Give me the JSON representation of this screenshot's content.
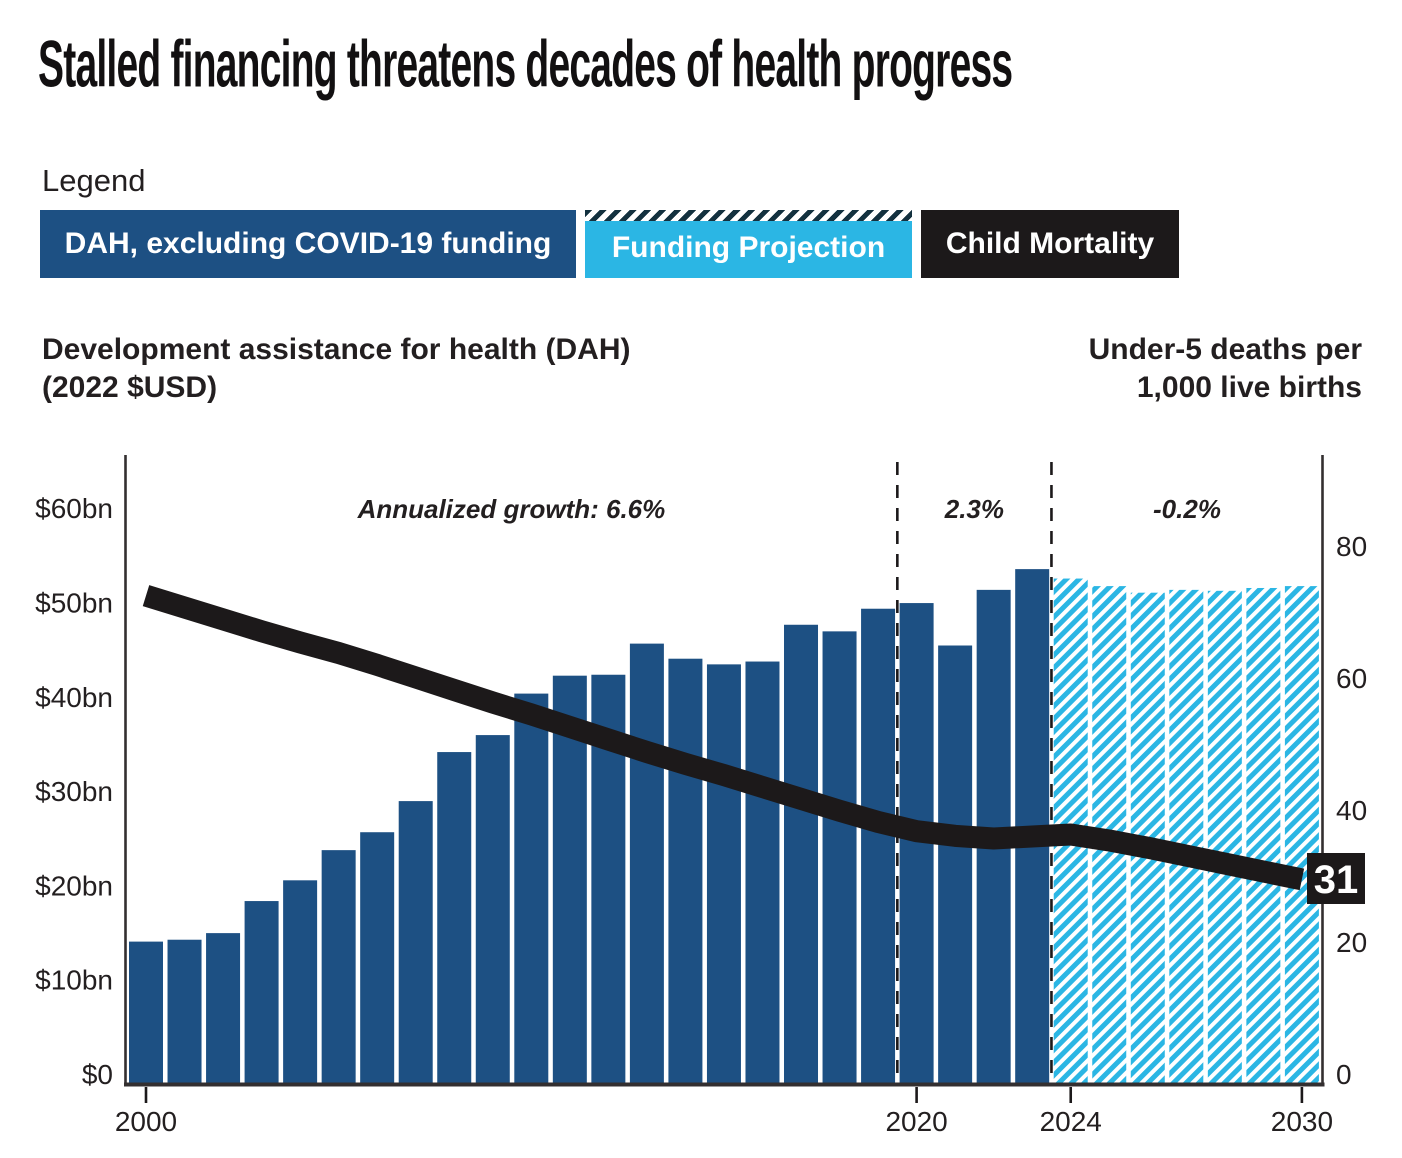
{
  "title": "Stalled financing threatens decades of health progress",
  "legend": {
    "label": "Legend",
    "items": [
      {
        "label": "DAH, excluding COVID-19 funding",
        "color": "#1d5083",
        "style": "solid"
      },
      {
        "label": "Funding Projection",
        "color": "#2bb6e4",
        "style": "hatched-top"
      },
      {
        "label": "Child Mortality",
        "color": "#1c191a",
        "style": "solid"
      }
    ]
  },
  "axis_headers": {
    "left_line1": "Development assistance for health (DAH)",
    "left_line2": "(2022 $USD)",
    "right_line1": "Under-5 deaths per",
    "right_line2": "1,000 live births"
  },
  "chart_data": {
    "type": "combo",
    "x": [
      2000,
      2001,
      2002,
      2003,
      2004,
      2005,
      2006,
      2007,
      2008,
      2009,
      2010,
      2011,
      2012,
      2013,
      2014,
      2015,
      2016,
      2017,
      2018,
      2019,
      2020,
      2021,
      2022,
      2023,
      2024,
      2025,
      2026,
      2027,
      2028,
      2029,
      2030
    ],
    "bar_series": {
      "name": "DAH, excluding COVID-19 funding",
      "unit": "billion 2022 USD",
      "color": "#1d5083",
      "projection_name": "Funding Projection",
      "projection_color": "#2bb6e4",
      "projection_start": 2024,
      "values": [
        15.1,
        15.3,
        16.0,
        19.4,
        21.6,
        24.8,
        26.7,
        30.0,
        35.2,
        37.0,
        41.4,
        43.3,
        43.4,
        46.7,
        45.1,
        44.5,
        44.8,
        48.7,
        48.0,
        50.4,
        51.0,
        46.5,
        52.4,
        54.6,
        53.6,
        52.8,
        52.1,
        52.4,
        52.3,
        52.6,
        52.8
      ]
    },
    "line_series": {
      "name": "Child Mortality",
      "unit": "under-5 deaths per 1,000 live births",
      "color": "#1c191a",
      "values": [
        74.0,
        72.2,
        70.4,
        68.6,
        66.9,
        65.3,
        63.5,
        61.6,
        59.7,
        57.8,
        56.0,
        54.1,
        52.2,
        50.3,
        48.5,
        46.8,
        45.0,
        43.2,
        41.4,
        39.7,
        38.3,
        37.6,
        37.2,
        37.5,
        37.8,
        36.9,
        35.8,
        34.6,
        33.4,
        32.2,
        31.0
      ]
    },
    "left_axis": {
      "tick_labels": [
        "$0",
        "$10bn",
        "$20bn",
        "$30bn",
        "$40bn",
        "$50bn",
        "$60bn"
      ],
      "tick_values": [
        0,
        10,
        20,
        30,
        40,
        50,
        60
      ],
      "range": [
        0,
        66.7
      ]
    },
    "right_axis": {
      "tick_labels": [
        "0",
        "20",
        "40",
        "60",
        "80"
      ],
      "tick_values": [
        0,
        20,
        40,
        60,
        80
      ],
      "range": [
        0,
        95.3
      ]
    },
    "x_axis": {
      "tick_years": [
        2000,
        2020,
        2024,
        2030
      ]
    },
    "dividers_years": [
      2019.5,
      2023.5
    ],
    "annotations": [
      {
        "label": "Annualized growth: 6.6%",
        "from": 2000,
        "to": 2019.5
      },
      {
        "label": "2.3%",
        "from": 2019.5,
        "to": 2023.5
      },
      {
        "label": "-0.2%",
        "from": 2023.5,
        "to": 2030
      }
    ],
    "end_label": {
      "text": "31",
      "year": 2030,
      "value": 31
    },
    "grid": false,
    "legend_position": "top"
  }
}
